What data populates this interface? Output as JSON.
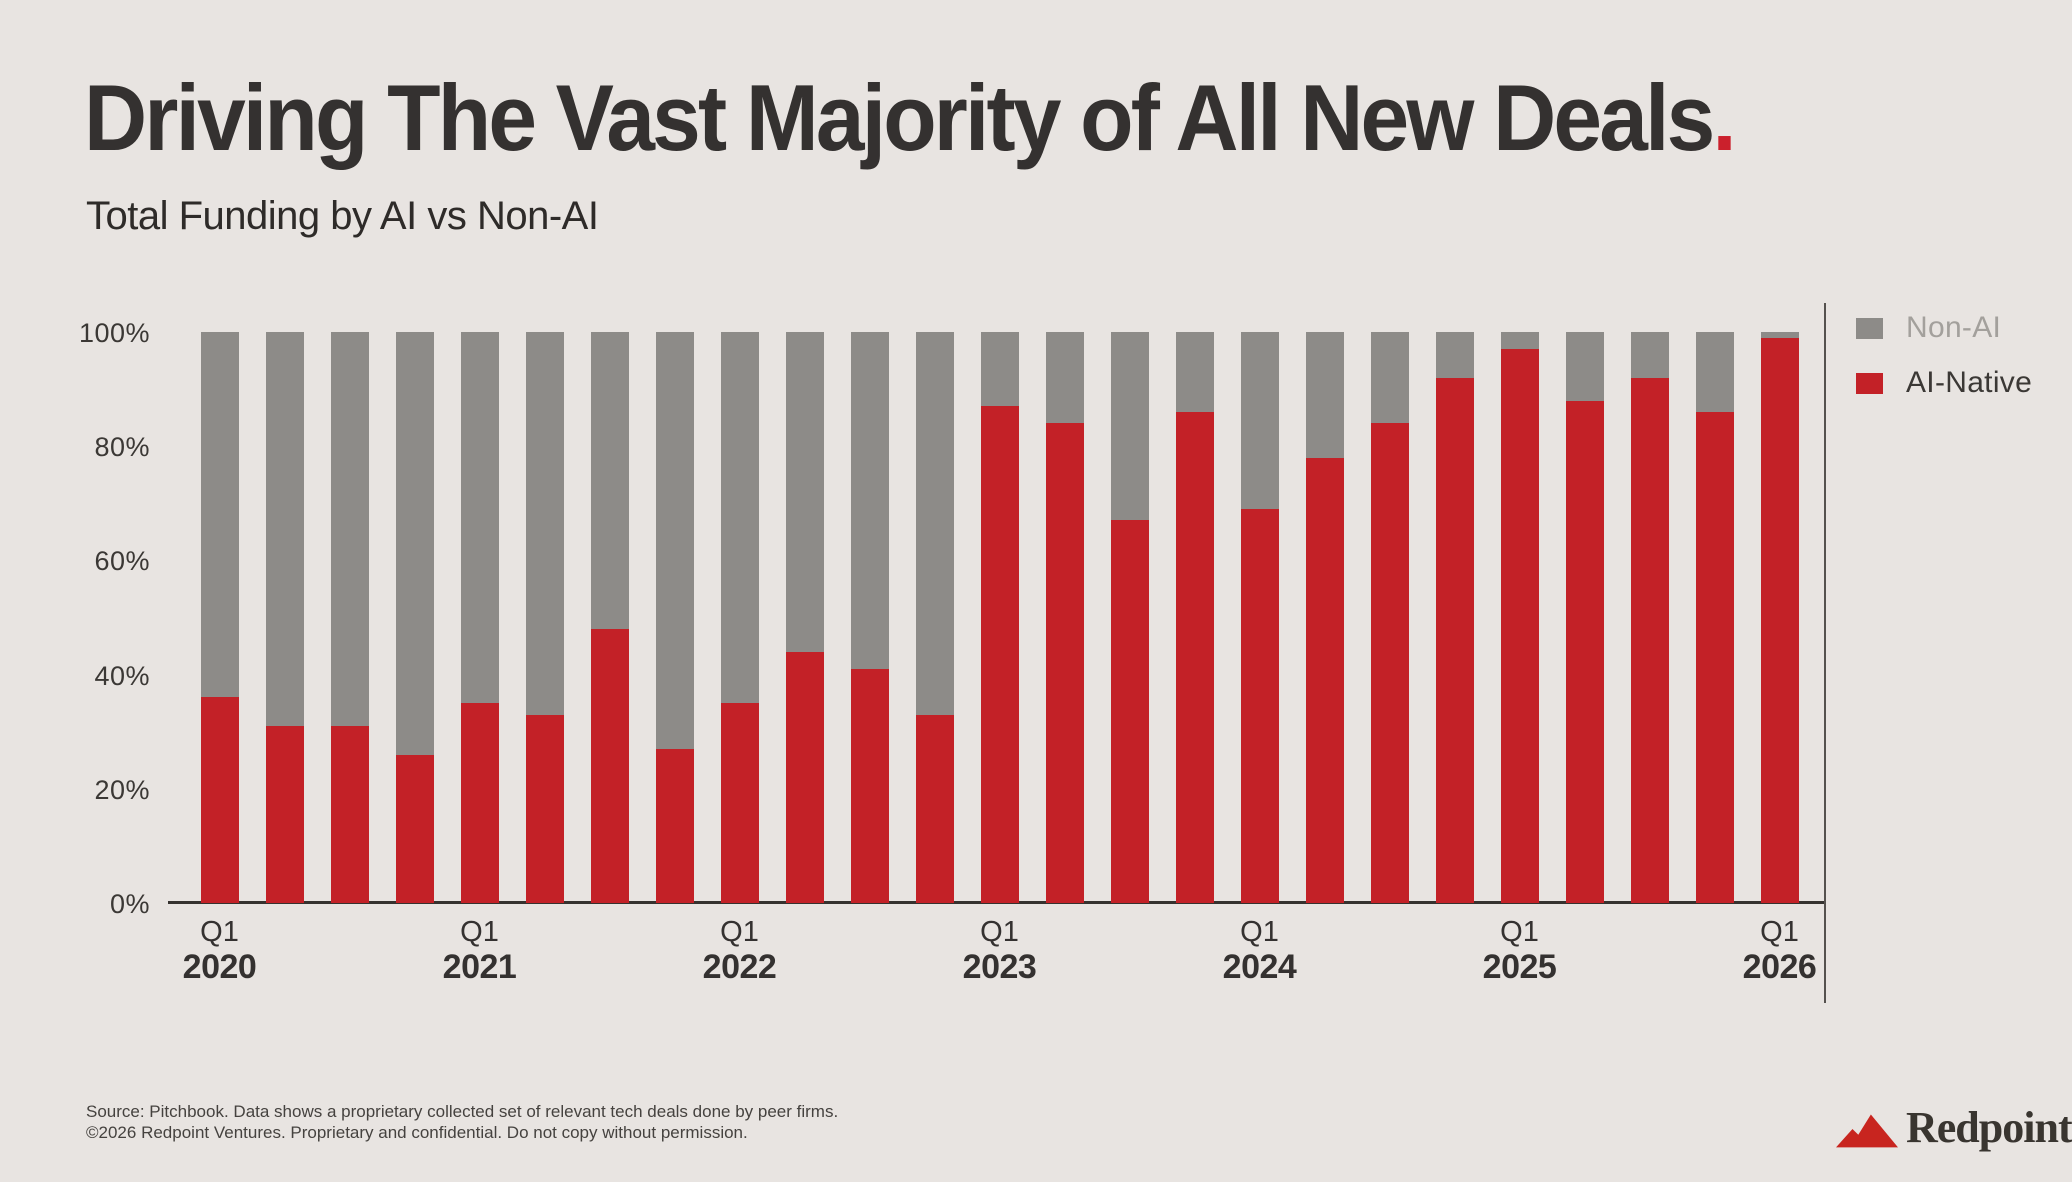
{
  "title": {
    "text": "Driving The Vast Majority of All New Deals",
    "period": "."
  },
  "subtitle": "Total Funding by AI vs Non-AI",
  "colors": {
    "background": "#e8e4e1",
    "ai_native_red": "#c32127",
    "non_ai_gray": "#8d8b88",
    "title_text": "#343130",
    "accent_dot": "#cb202c",
    "axis_line": "#35322f",
    "legend_nonai_text": "#a3a09c",
    "legend_ai_text": "#3b3835"
  },
  "legend": {
    "items": [
      {
        "label": "Non-AI",
        "color": "#8d8b88",
        "text_color": "#a3a09c"
      },
      {
        "label": "AI-Native",
        "color": "#c32127",
        "text_color": "#3b3835"
      }
    ]
  },
  "chart_data": {
    "type": "bar",
    "stacked": true,
    "unit": "percent",
    "title": "Total Funding by AI vs Non-AI",
    "categories": [
      "Q1 2020",
      "Q2 2020",
      "Q3 2020",
      "Q4 2020",
      "Q1 2021",
      "Q2 2021",
      "Q3 2021",
      "Q4 2021",
      "Q1 2022",
      "Q2 2022",
      "Q3 2022",
      "Q4 2022",
      "Q1 2023",
      "Q2 2023",
      "Q3 2023",
      "Q4 2023",
      "Q1 2024",
      "Q2 2024",
      "Q3 2024",
      "Q4 2024",
      "Q1 2025",
      "Q2 2025",
      "Q3 2025",
      "Q4 2025",
      "Q1 2026"
    ],
    "series": [
      {
        "name": "AI-Native",
        "color": "#c32127",
        "values": [
          36,
          31,
          31,
          26,
          35,
          33,
          48,
          27,
          35,
          44,
          41,
          33,
          87,
          84,
          67,
          86,
          69,
          78,
          84,
          92,
          97,
          88,
          92,
          86,
          99
        ]
      },
      {
        "name": "Non-AI",
        "color": "#8d8b88",
        "values": [
          64,
          69,
          69,
          74,
          65,
          67,
          52,
          73,
          65,
          56,
          59,
          67,
          13,
          16,
          33,
          14,
          31,
          22,
          16,
          8,
          3,
          12,
          8,
          14,
          1
        ]
      }
    ],
    "y_ticks": [
      {
        "value": 100,
        "label": "100%"
      },
      {
        "value": 80,
        "label": "80%"
      },
      {
        "value": 60,
        "label": "60%"
      },
      {
        "value": 40,
        "label": "40%"
      },
      {
        "value": 20,
        "label": "20%"
      },
      {
        "value": 0,
        "label": "0%"
      }
    ],
    "ylim": [
      0,
      100
    ],
    "x_ticks": [
      {
        "quarter": "Q1",
        "year": "2020",
        "index": 0
      },
      {
        "quarter": "Q1",
        "year": "2021",
        "index": 4
      },
      {
        "quarter": "Q1",
        "year": "2022",
        "index": 8
      },
      {
        "quarter": "Q1",
        "year": "2023",
        "index": 12
      },
      {
        "quarter": "Q1",
        "year": "2024",
        "index": 16
      },
      {
        "quarter": "Q1",
        "year": "2025",
        "index": 20
      },
      {
        "quarter": "Q1",
        "year": "2026",
        "index": 24
      }
    ],
    "grid": false,
    "legend_position": "top-right"
  },
  "footer": {
    "line1": "Source: Pitchbook. Data shows a proprietary collected set of relevant tech deals done by peer firms.",
    "line2": "©2026 Redpoint Ventures. Proprietary and confidential. Do not copy without permission."
  },
  "logo": {
    "text": "Redpoint"
  }
}
